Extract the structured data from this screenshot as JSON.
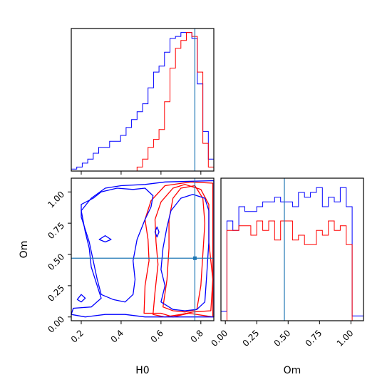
{
  "chart_data": [
    {
      "panel": "H0 marginal",
      "type": "histogram",
      "xlim": [
        0.15,
        0.865
      ],
      "truth": 0.77,
      "bin_edges": [
        0.15,
        0.1775,
        0.205,
        0.2325,
        0.26,
        0.2875,
        0.315,
        0.3425,
        0.37,
        0.3975,
        0.425,
        0.4525,
        0.48,
        0.5075,
        0.535,
        0.5625,
        0.59,
        0.6175,
        0.645,
        0.6725,
        0.7,
        0.7275,
        0.755,
        0.7825,
        0.81,
        0.8375,
        0.865
      ],
      "series": [
        {
          "color": "#0000ff",
          "values": [
            0.5,
            1,
            2,
            3,
            4.5,
            6,
            6,
            7.5,
            7.5,
            9,
            11,
            13,
            15,
            17,
            21,
            25,
            26.5,
            30,
            33.5,
            34,
            35,
            35,
            33.5,
            22,
            10,
            3
          ]
        },
        {
          "color": "#ff0000",
          "values": [
            0,
            0,
            0,
            0,
            0,
            0,
            0,
            0,
            0,
            0,
            0,
            0,
            1,
            3,
            6,
            8,
            10.5,
            17.5,
            26,
            31,
            33,
            35,
            34,
            25,
            7,
            1
          ]
        }
      ]
    },
    {
      "panel": "H0 vs Om contours",
      "type": "contour",
      "xlabel": "H0",
      "ylabel": "Om",
      "xlim": [
        0.15,
        0.865
      ],
      "ylim": [
        -0.03,
        1.11
      ],
      "xticks": [
        "0.2",
        "0.4",
        "0.6",
        "0.8"
      ],
      "yticks": [
        "0.00",
        "0.25",
        "0.50",
        "0.75",
        "1.00"
      ],
      "truth": {
        "H0": 0.77,
        "Om": 0.47
      },
      "series": [
        {
          "color": "#ff0000",
          "contours": [
            [
              [
                0.515,
                0.03
              ],
              [
                0.52,
                0.25
              ],
              [
                0.54,
                0.45
              ],
              [
                0.535,
                0.62
              ],
              [
                0.52,
                0.78
              ],
              [
                0.55,
                0.93
              ],
              [
                0.62,
                1.05
              ],
              [
                0.75,
                1.08
              ],
              [
                0.86,
                1.07
              ],
              [
                0.86,
                0.0
              ],
              [
                0.74,
                0.03
              ],
              [
                0.66,
                0.0
              ],
              [
                0.6,
                0.03
              ],
              [
                0.515,
                0.03
              ]
            ],
            [
              [
                0.56,
                0.02
              ],
              [
                0.57,
                0.2
              ],
              [
                0.585,
                0.42
              ],
              [
                0.575,
                0.6
              ],
              [
                0.57,
                0.78
              ],
              [
                0.6,
                0.92
              ],
              [
                0.66,
                1.03
              ],
              [
                0.72,
                1.06
              ],
              [
                0.8,
                1.02
              ],
              [
                0.84,
                0.9
              ],
              [
                0.84,
                0.6
              ],
              [
                0.86,
                0.3
              ],
              [
                0.85,
                0.05
              ],
              [
                0.76,
                0.04
              ],
              [
                0.7,
                0.02
              ],
              [
                0.62,
                0.0
              ],
              [
                0.56,
                0.02
              ]
            ],
            [
              [
                0.61,
                0.08
              ],
              [
                0.63,
                0.3
              ],
              [
                0.64,
                0.55
              ],
              [
                0.64,
                0.78
              ],
              [
                0.66,
                0.95
              ],
              [
                0.7,
                1.03
              ],
              [
                0.77,
                1.05
              ],
              [
                0.81,
                0.95
              ],
              [
                0.82,
                0.75
              ],
              [
                0.81,
                0.5
              ],
              [
                0.8,
                0.25
              ],
              [
                0.78,
                0.06
              ],
              [
                0.72,
                0.04
              ],
              [
                0.66,
                0.05
              ],
              [
                0.61,
                0.08
              ]
            ]
          ]
        },
        {
          "color": "#0000ff",
          "contours": [
            [
              [
                0.14,
                0.02
              ],
              [
                0.16,
                0.07
              ],
              [
                0.25,
                0.08
              ],
              [
                0.3,
                0.15
              ],
              [
                0.28,
                0.25
              ],
              [
                0.25,
                0.4
              ],
              [
                0.24,
                0.55
              ],
              [
                0.22,
                0.68
              ],
              [
                0.2,
                0.85
              ],
              [
                0.25,
                0.95
              ],
              [
                0.32,
                1.03
              ],
              [
                0.4,
                1.05
              ],
              [
                0.52,
                1.06
              ],
              [
                0.62,
                1.08
              ],
              [
                0.865,
                1.09
              ],
              [
                0.865,
                0.0
              ],
              [
                0.52,
                0.0
              ],
              [
                0.42,
                0.02
              ],
              [
                0.32,
                0.02
              ],
              [
                0.22,
                0.0
              ],
              [
                0.14,
                0.02
              ]
            ],
            [
              [
                0.2,
                0.8
              ],
              [
                0.2,
                0.9
              ],
              [
                0.26,
                0.95
              ],
              [
                0.3,
                1.0
              ],
              [
                0.38,
                1.03
              ],
              [
                0.46,
                1.02
              ],
              [
                0.52,
                1.03
              ],
              [
                0.56,
                0.97
              ],
              [
                0.55,
                0.88
              ],
              [
                0.52,
                0.78
              ],
              [
                0.48,
                0.62
              ],
              [
                0.46,
                0.45
              ],
              [
                0.47,
                0.3
              ],
              [
                0.46,
                0.18
              ],
              [
                0.42,
                0.12
              ],
              [
                0.36,
                0.14
              ],
              [
                0.3,
                0.18
              ],
              [
                0.28,
                0.3
              ],
              [
                0.26,
                0.45
              ],
              [
                0.24,
                0.6
              ],
              [
                0.22,
                0.7
              ],
              [
                0.2,
                0.8
              ]
            ],
            [
              [
                0.6,
                0.12
              ],
              [
                0.62,
                0.25
              ],
              [
                0.6,
                0.38
              ],
              [
                0.61,
                0.55
              ],
              [
                0.63,
                0.72
              ],
              [
                0.65,
                0.85
              ],
              [
                0.7,
                0.95
              ],
              [
                0.76,
                0.98
              ],
              [
                0.82,
                0.95
              ],
              [
                0.84,
                0.85
              ],
              [
                0.84,
                0.6
              ],
              [
                0.83,
                0.35
              ],
              [
                0.82,
                0.12
              ],
              [
                0.78,
                0.06
              ],
              [
                0.72,
                0.05
              ],
              [
                0.66,
                0.06
              ],
              [
                0.6,
                0.12
              ]
            ],
            [
              [
                0.18,
                0.14
              ],
              [
                0.2,
                0.18
              ],
              [
                0.22,
                0.15
              ],
              [
                0.2,
                0.12
              ],
              [
                0.18,
                0.14
              ]
            ],
            [
              [
                0.29,
                0.62
              ],
              [
                0.32,
                0.65
              ],
              [
                0.35,
                0.62
              ],
              [
                0.32,
                0.6
              ],
              [
                0.29,
                0.62
              ]
            ],
            [
              [
                0.57,
                0.68
              ],
              [
                0.58,
                0.72
              ],
              [
                0.59,
                0.68
              ],
              [
                0.58,
                0.64
              ],
              [
                0.57,
                0.68
              ]
            ]
          ]
        }
      ]
    },
    {
      "panel": "Om marginal",
      "type": "histogram",
      "xlabel": "Om",
      "xlim": [
        -0.035,
        1.1
      ],
      "xticks": [
        "0.00",
        "0.25",
        "0.50",
        "0.75",
        "1.00"
      ],
      "truth": 0.47,
      "bin_edges": [
        -0.035,
        0.0125,
        0.06,
        0.1075,
        0.155,
        0.2025,
        0.25,
        0.2975,
        0.345,
        0.3925,
        0.44,
        0.4875,
        0.535,
        0.5825,
        0.63,
        0.6775,
        0.725,
        0.7725,
        0.82,
        0.8675,
        0.915,
        0.9625,
        1.01,
        1.0575,
        1.1
      ],
      "series": [
        {
          "color": "#0000ff",
          "values": [
            2,
            21,
            19,
            24,
            23,
            23,
            24,
            25,
            25,
            26,
            25,
            25,
            24,
            27,
            26,
            27,
            28,
            24,
            26,
            25,
            28,
            24,
            1,
            1
          ]
        },
        {
          "color": "#ff0000",
          "values": [
            0,
            19,
            19,
            20,
            20,
            18,
            21,
            19,
            21,
            17,
            21,
            21,
            17,
            18,
            16,
            16,
            19,
            18,
            21,
            19,
            20,
            16,
            0,
            0
          ]
        }
      ]
    }
  ]
}
